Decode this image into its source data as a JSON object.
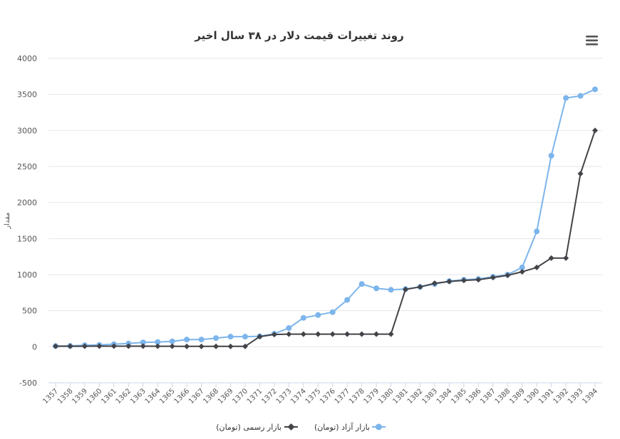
{
  "colors": {
    "free_market": "#7cb5ec",
    "official_market": "#434348",
    "grid": "#e6e6e6",
    "menu": "#555555"
  },
  "menu": {
    "icon": "hamburger-menu-icon"
  },
  "chart_data": {
    "type": "line",
    "title": "روند تغییرات قیمت دلار در ۳۸ سال اخیر",
    "ylabel": "مقدار",
    "xlabel": "",
    "ylim": [
      -500,
      4000
    ],
    "yticks": [
      -500,
      0,
      500,
      1000,
      1500,
      2000,
      2500,
      3000,
      3500,
      4000
    ],
    "grid": true,
    "legend_position": "bottom-center",
    "categories": [
      "1357",
      "1358",
      "1359",
      "1360",
      "1361",
      "1362",
      "1363",
      "1364",
      "1365",
      "1366",
      "1367",
      "1368",
      "1369",
      "1370",
      "1371",
      "1372",
      "1373",
      "1374",
      "1375",
      "1376",
      "1377",
      "1378",
      "1379",
      "1380",
      "1381",
      "1382",
      "1383",
      "1384",
      "1385",
      "1386",
      "1387",
      "1388",
      "1389",
      "1390",
      "1391",
      "1392",
      "1393",
      "1394"
    ],
    "series": [
      {
        "name": "بازار آزاد (تومان)",
        "marker": "circle",
        "values": [
          10,
          12,
          20,
          25,
          35,
          45,
          60,
          65,
          75,
          100,
          100,
          120,
          140,
          140,
          145,
          180,
          260,
          400,
          440,
          480,
          650,
          870,
          810,
          790,
          800,
          830,
          870,
          910,
          930,
          940,
          970,
          1000,
          1100,
          1600,
          2650,
          3450,
          3480,
          3570
        ]
      },
      {
        "name": "بازار رسمی (تومان)",
        "marker": "diamond",
        "values": [
          7,
          7,
          7,
          8,
          8,
          8,
          8,
          7,
          7,
          5,
          5,
          5,
          5,
          5,
          140,
          170,
          175,
          175,
          175,
          175,
          175,
          175,
          175,
          175,
          795,
          830,
          880,
          905,
          920,
          930,
          960,
          990,
          1040,
          1100,
          1230,
          1230,
          2400,
          3000
        ]
      }
    ]
  }
}
